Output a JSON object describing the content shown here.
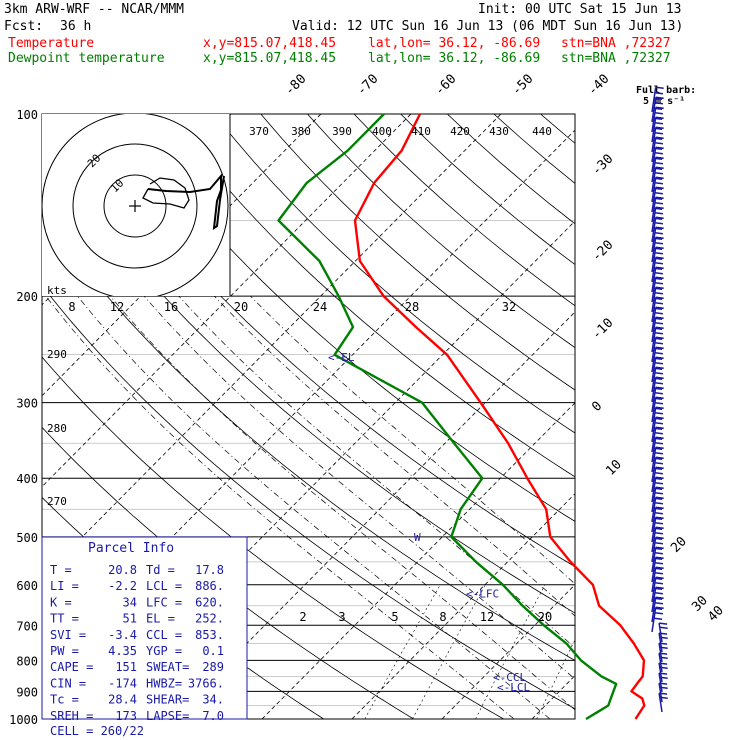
{
  "header": {
    "model": "3km ARW-WRF -- NCAR/MMM",
    "init": "Init: 00 UTC Sat 15 Jun 13",
    "fcst_label": "Fcst:",
    "fcst_value": "36 h",
    "valid": "Valid: 12 UTC Sun 16 Jun 13 (06 MDT Sun 16 Jun 13)",
    "temp_label": "Temperature",
    "dew_label": "Dewpoint temperature",
    "xy": "x,y=815.07,418.45",
    "latlon": "lat,lon= 36.12, -86.69",
    "stn": "stn=BNA ,72327"
  },
  "colors": {
    "temperature": "#ff0000",
    "dewpoint": "#008000",
    "wind": "#1a1aa8",
    "parcel": "#1a1aa8",
    "grid": "#000000"
  },
  "chart_data": {
    "type": "line",
    "chart_kind": "skew-T log-p diagram",
    "pressure_axis": {
      "scale": "log",
      "range_hPa": [
        1000,
        100
      ],
      "ticks": [
        "100",
        "200",
        "300",
        "400",
        "500",
        "600",
        "700",
        "800",
        "900",
        "1000"
      ]
    },
    "skew_isotherm_labels_C": [
      "-80",
      "-70",
      "-60",
      "-50",
      "-40",
      "-30",
      "-20",
      "-10",
      "0",
      "10",
      "20",
      "30",
      "40"
    ],
    "theta_e_labels_K": [
      "370",
      "380",
      "390",
      "400",
      "410",
      "420",
      "430",
      "440"
    ],
    "theta_labels_K": [
      "290",
      "280",
      "270"
    ],
    "mixing_ratio_labels_upper": [
      "8",
      "12",
      "16",
      "20",
      "24",
      "28",
      "32"
    ],
    "mixing_ratio_labels_lower": [
      "2",
      "3",
      "5",
      "8",
      "12",
      "20"
    ],
    "series": [
      {
        "name": "Temperature",
        "color": "#ff0000",
        "points_pT": [
          [
            1000,
            21.5
          ],
          [
            950,
            21.0
          ],
          [
            925,
            20.0
          ],
          [
            900,
            18.0
          ],
          [
            875,
            17.8
          ],
          [
            850,
            17.6
          ],
          [
            800,
            16.0
          ],
          [
            750,
            13.0
          ],
          [
            700,
            9.5
          ],
          [
            650,
            5.0
          ],
          [
            600,
            2.0
          ],
          [
            550,
            -3.0
          ],
          [
            500,
            -8.0
          ],
          [
            450,
            -11.5
          ],
          [
            400,
            -17.0
          ],
          [
            350,
            -23.0
          ],
          [
            300,
            -30.5
          ],
          [
            250,
            -39.5
          ],
          [
            225,
            -46.0
          ],
          [
            200,
            -53.0
          ],
          [
            175,
            -59.5
          ],
          [
            150,
            -64.5
          ],
          [
            130,
            -66.5
          ],
          [
            115,
            -67.0
          ],
          [
            100,
            -69.0
          ]
        ]
      },
      {
        "name": "Dewpoint temperature",
        "color": "#008000",
        "points_pT": [
          [
            1000,
            16.0
          ],
          [
            975,
            16.5
          ],
          [
            950,
            17.0
          ],
          [
            925,
            16.5
          ],
          [
            900,
            16.0
          ],
          [
            875,
            15.5
          ],
          [
            850,
            13.0
          ],
          [
            800,
            9.0
          ],
          [
            750,
            5.5
          ],
          [
            700,
            1.0
          ],
          [
            650,
            -3.5
          ],
          [
            600,
            -8.0
          ],
          [
            550,
            -13.5
          ],
          [
            500,
            -19.0
          ],
          [
            450,
            -21.0
          ],
          [
            400,
            -22.0
          ],
          [
            350,
            -29.0
          ],
          [
            300,
            -37.0
          ],
          [
            250,
            -52.0
          ],
          [
            225,
            -53.0
          ],
          [
            200,
            -58.0
          ],
          [
            175,
            -64.0
          ],
          [
            150,
            -73.0
          ],
          [
            130,
            -74.0
          ],
          [
            115,
            -73.0
          ],
          [
            100,
            -73.0
          ]
        ]
      }
    ],
    "parcel_levels": [
      {
        "label": "<-EL",
        "p": 252
      },
      {
        "label": "<-LFC",
        "p": 620
      },
      {
        "label": "<-CCL",
        "p": 853
      },
      {
        "label": "<-LCL",
        "p": 886
      }
    ],
    "wind_scale_title": "Full barb:",
    "wind_scale_value": "5 m s⁻¹",
    "hodograph": {
      "ring_labels": [
        "10",
        "20"
      ],
      "axis_label": "kts"
    }
  },
  "parcel_info": {
    "title": "Parcel Info",
    "rows": [
      [
        "T   =",
        "20.8",
        "Td  =",
        "17.8"
      ],
      [
        "LI  =",
        "-2.2",
        "LCL =",
        "886."
      ],
      [
        "K   =",
        "34",
        "LFC =",
        "620."
      ],
      [
        "TT  =",
        "51",
        "EL  =",
        "252."
      ],
      [
        "SVI =",
        "-3.4",
        "CCL =",
        "853."
      ],
      [
        "PW  =",
        "4.35",
        "YGP =",
        "0.1"
      ],
      [
        "CAPE =",
        "151",
        "SWEAT=",
        "289"
      ],
      [
        "CIN  =",
        "-174",
        "HWBZ=",
        "3766."
      ],
      [
        "Tc   =",
        "28.4",
        "SHEAR=",
        "34."
      ],
      [
        "SREH =",
        "173",
        "LAPSE=",
        "7.0"
      ]
    ],
    "cell": "CELL = 260/22",
    "w_mark": "W"
  }
}
